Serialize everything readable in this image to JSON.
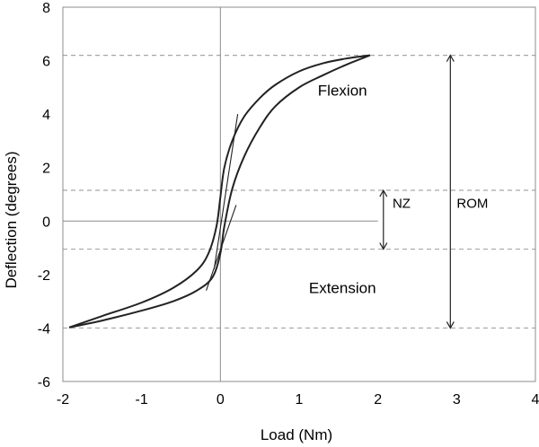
{
  "chart_data": {
    "type": "line",
    "title": "",
    "xlabel": "Load (Nm)",
    "ylabel": "Deflection (degrees)",
    "xlim": [
      -2,
      4
    ],
    "ylim": [
      -6,
      8
    ],
    "xticks": [
      "-2",
      "-1",
      "0",
      "1",
      "2",
      "3",
      "4"
    ],
    "yticks": [
      "-6",
      "-4",
      "-2",
      "0",
      "2",
      "4",
      "6",
      "8"
    ],
    "grid": false,
    "legend": "none",
    "colors": {
      "curve": "#222222",
      "axis": "#8c8c8c",
      "dashed": "#a6a6a6",
      "arrow": "#222222"
    },
    "series": [
      {
        "x": [
          -1.92,
          -1.5,
          -1.0,
          -0.6,
          -0.3,
          -0.15,
          -0.05,
          0.0,
          0.05,
          0.15,
          0.3,
          0.5,
          0.7,
          1.0,
          1.3,
          1.6,
          1.9
        ],
        "y": [
          -3.98,
          -3.55,
          -3.05,
          -2.5,
          -1.85,
          -1.2,
          -0.2,
          0.9,
          2.0,
          3.0,
          3.9,
          4.6,
          5.1,
          5.6,
          5.9,
          6.08,
          6.2
        ]
      },
      {
        "x": [
          1.9,
          1.6,
          1.3,
          1.0,
          0.7,
          0.5,
          0.3,
          0.15,
          0.05,
          0.0,
          -0.1,
          -0.3,
          -0.6,
          -1.0,
          -1.5,
          -1.92
        ],
        "y": [
          6.2,
          5.85,
          5.45,
          5.0,
          4.3,
          3.5,
          2.4,
          1.2,
          -0.2,
          -1.2,
          -2.1,
          -2.6,
          -3.0,
          -3.35,
          -3.72,
          -3.98
        ]
      }
    ],
    "tangents": [
      {
        "x": [
          -0.08,
          0.22
        ],
        "y": [
          -1.8,
          4.0
        ]
      },
      {
        "x": [
          -0.18,
          0.2
        ],
        "y": [
          -2.6,
          0.6
        ]
      }
    ],
    "dashed_lines": [
      {
        "y": 6.2,
        "x": [
          -2,
          4
        ]
      },
      {
        "y": 1.15,
        "x": [
          -2,
          4
        ]
      },
      {
        "y": -1.05,
        "x": [
          -2,
          4
        ]
      },
      {
        "y": -4.0,
        "x": [
          -2,
          4
        ]
      }
    ],
    "arrows": [
      {
        "label": "NZ",
        "x": 2.07,
        "y": [
          1.15,
          -1.05
        ]
      },
      {
        "label": "ROM",
        "x": 2.92,
        "y": [
          6.2,
          -4.0
        ]
      }
    ],
    "annotations": [
      {
        "text": "Flexion",
        "x": 1.55,
        "y": 4.7
      },
      {
        "text": "Extension",
        "x": 1.55,
        "y": -2.7
      },
      {
        "text": "NZ",
        "x": 2.3,
        "y": 0.5
      },
      {
        "text": "ROM",
        "x": 3.2,
        "y": 0.5
      }
    ]
  }
}
